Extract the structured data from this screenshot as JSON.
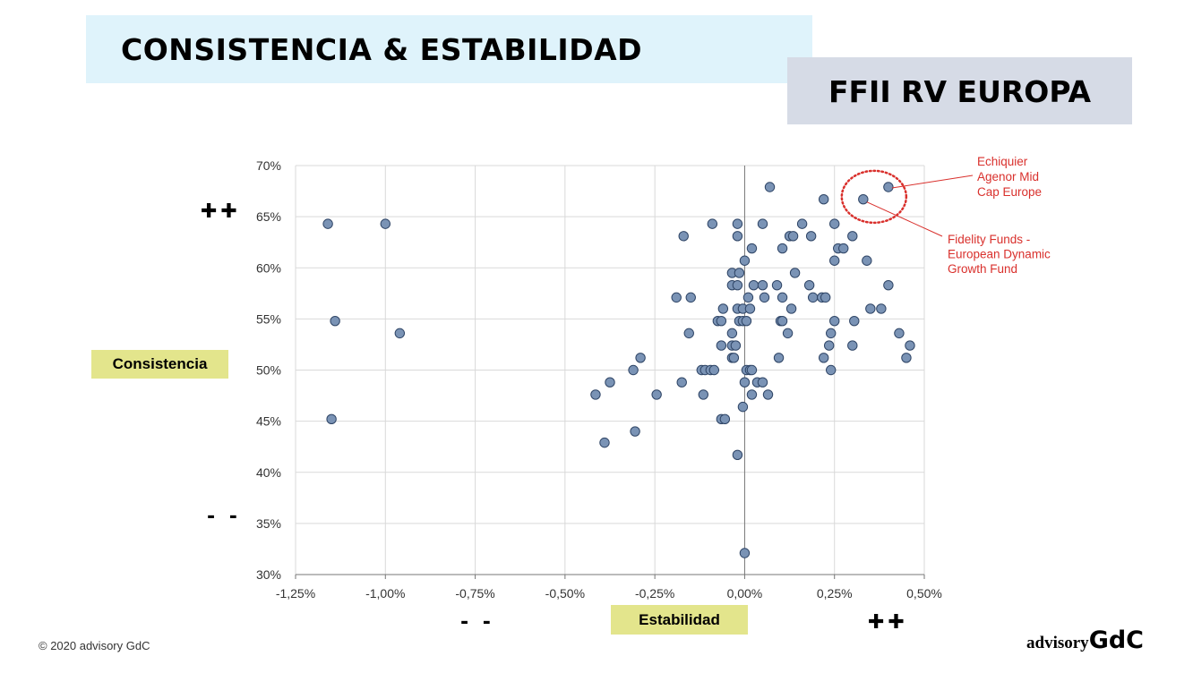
{
  "header": {
    "title": "CONSISTENCIA & ESTABILIDAD",
    "subtitle": "FFII RV EUROPA"
  },
  "labels": {
    "y_badge": "Consistencia",
    "x_badge": "Estabilidad",
    "y_plus": "✚✚",
    "y_minus": "- -",
    "x_minus": "- -",
    "x_plus": "✚✚"
  },
  "footer": {
    "copyright": "© 2020 advisory GdC",
    "logo_a": "advisory",
    "logo_b": "GdC"
  },
  "colors": {
    "point_fill": "#7a93b5",
    "point_stroke": "#2f4566",
    "annotation": "#d9302c",
    "grid": "#d9d9d9"
  },
  "chart_data": {
    "type": "scatter",
    "xlim": [
      -1.25,
      0.5
    ],
    "ylim": [
      30,
      70
    ],
    "x_ticks": [
      -1.25,
      -1.0,
      -0.75,
      -0.5,
      -0.25,
      0.0,
      0.25,
      0.5
    ],
    "x_tick_labels": [
      "-1,25%",
      "-1,00%",
      "-0,75%",
      "-0,50%",
      "-0,25%",
      "0,00%",
      "0,25%",
      "0,50%"
    ],
    "y_ticks": [
      30,
      35,
      40,
      45,
      50,
      55,
      60,
      65,
      70
    ],
    "y_tick_labels": [
      "30%",
      "35%",
      "40%",
      "45%",
      "50%",
      "55%",
      "60%",
      "65%",
      "70%"
    ],
    "grid": true,
    "points": [
      [
        -1.16,
        64.3
      ],
      [
        -1.0,
        64.3
      ],
      [
        -1.14,
        54.8
      ],
      [
        -0.96,
        53.6
      ],
      [
        -1.15,
        45.2
      ],
      [
        0.07,
        67.9
      ],
      [
        0.22,
        66.7
      ],
      [
        0.33,
        66.7
      ],
      [
        0.4,
        67.9
      ],
      [
        -0.09,
        64.3
      ],
      [
        -0.02,
        64.3
      ],
      [
        0.05,
        64.3
      ],
      [
        0.16,
        64.3
      ],
      [
        0.25,
        64.3
      ],
      [
        -0.17,
        63.1
      ],
      [
        -0.02,
        63.1
      ],
      [
        0.125,
        63.1
      ],
      [
        0.135,
        63.1
      ],
      [
        0.185,
        63.1
      ],
      [
        0.3,
        63.1
      ],
      [
        0.02,
        61.9
      ],
      [
        0.105,
        61.9
      ],
      [
        0.26,
        61.9
      ],
      [
        0.275,
        61.9
      ],
      [
        0.0,
        60.7
      ],
      [
        0.25,
        60.7
      ],
      [
        0.34,
        60.7
      ],
      [
        -0.035,
        59.5
      ],
      [
        -0.015,
        59.5
      ],
      [
        0.14,
        59.5
      ],
      [
        -0.035,
        58.3
      ],
      [
        -0.02,
        58.3
      ],
      [
        0.025,
        58.3
      ],
      [
        0.05,
        58.3
      ],
      [
        0.09,
        58.3
      ],
      [
        0.18,
        58.3
      ],
      [
        0.4,
        58.3
      ],
      [
        -0.19,
        57.1
      ],
      [
        -0.15,
        57.1
      ],
      [
        0.01,
        57.1
      ],
      [
        0.055,
        57.1
      ],
      [
        0.105,
        57.1
      ],
      [
        0.19,
        57.1
      ],
      [
        0.215,
        57.1
      ],
      [
        0.225,
        57.1
      ],
      [
        -0.06,
        56.0
      ],
      [
        -0.02,
        56.0
      ],
      [
        -0.005,
        56.0
      ],
      [
        0.015,
        56.0
      ],
      [
        0.13,
        56.0
      ],
      [
        0.35,
        56.0
      ],
      [
        0.38,
        56.0
      ],
      [
        -0.075,
        54.8
      ],
      [
        -0.065,
        54.8
      ],
      [
        -0.015,
        54.8
      ],
      [
        -0.005,
        54.8
      ],
      [
        0.005,
        54.8
      ],
      [
        0.1,
        54.8
      ],
      [
        0.105,
        54.8
      ],
      [
        0.25,
        54.8
      ],
      [
        0.305,
        54.8
      ],
      [
        -0.155,
        53.6
      ],
      [
        -0.035,
        53.6
      ],
      [
        0.12,
        53.6
      ],
      [
        0.24,
        53.6
      ],
      [
        0.43,
        53.6
      ],
      [
        -0.065,
        52.4
      ],
      [
        -0.035,
        52.4
      ],
      [
        -0.025,
        52.4
      ],
      [
        0.235,
        52.4
      ],
      [
        0.3,
        52.4
      ],
      [
        0.46,
        52.4
      ],
      [
        -0.29,
        51.2
      ],
      [
        -0.035,
        51.2
      ],
      [
        -0.03,
        51.2
      ],
      [
        0.095,
        51.2
      ],
      [
        0.22,
        51.2
      ],
      [
        0.45,
        51.2
      ],
      [
        -0.31,
        50.0
      ],
      [
        -0.12,
        50.0
      ],
      [
        -0.11,
        50.0
      ],
      [
        -0.095,
        50.0
      ],
      [
        -0.085,
        50.0
      ],
      [
        0.005,
        50.0
      ],
      [
        0.015,
        50.0
      ],
      [
        0.02,
        50.0
      ],
      [
        0.24,
        50.0
      ],
      [
        -0.415,
        47.6
      ],
      [
        -0.375,
        48.8
      ],
      [
        -0.175,
        48.8
      ],
      [
        -0.245,
        47.6
      ],
      [
        -0.115,
        47.6
      ],
      [
        0.0,
        48.8
      ],
      [
        0.035,
        48.8
      ],
      [
        0.05,
        48.8
      ],
      [
        0.02,
        47.6
      ],
      [
        0.065,
        47.6
      ],
      [
        -0.005,
        46.4
      ],
      [
        -0.065,
        45.2
      ],
      [
        -0.055,
        45.2
      ],
      [
        -0.39,
        42.9
      ],
      [
        -0.305,
        44.0
      ],
      [
        -0.02,
        41.7
      ],
      [
        0.0,
        32.1
      ]
    ],
    "annotations": [
      {
        "text": [
          "Echiquier",
          "Agenor Mid",
          "Cap Europe"
        ],
        "point": [
          0.4,
          67.9
        ]
      },
      {
        "text": [
          "Fidelity Funds -",
          "European Dynamic",
          "Growth Fund"
        ],
        "point": [
          0.33,
          66.7
        ]
      }
    ]
  }
}
